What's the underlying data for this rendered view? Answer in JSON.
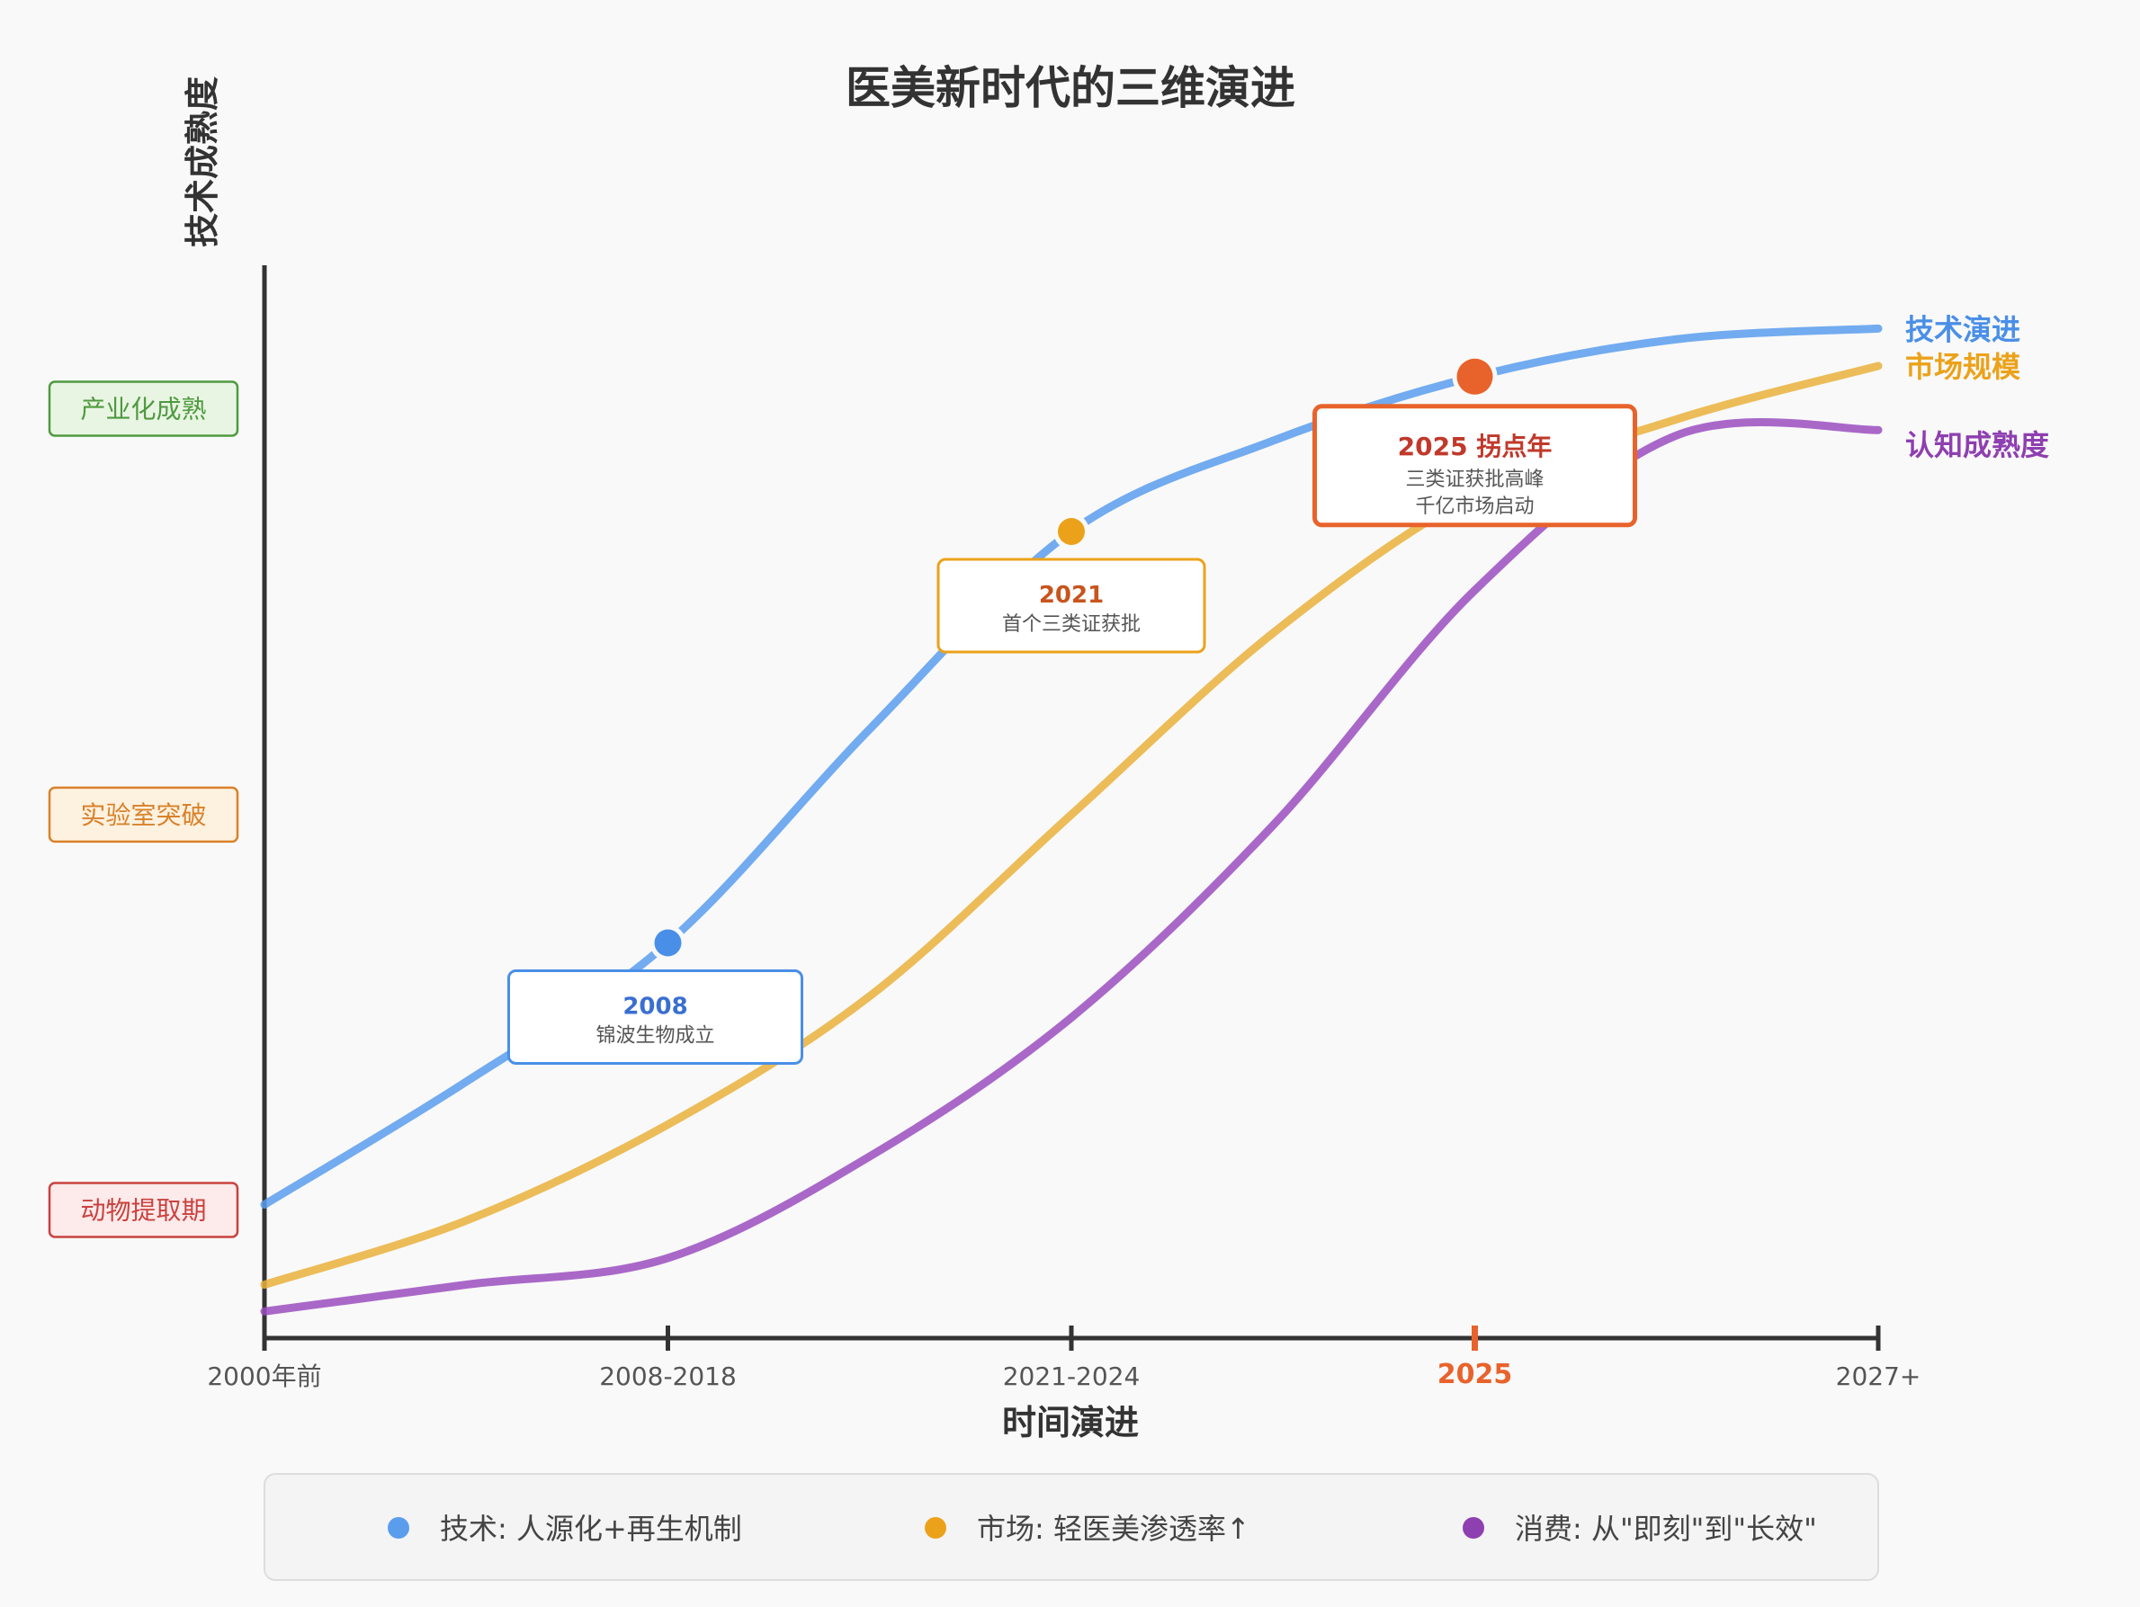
{
  "chart_data": {
    "type": "line",
    "title": "医美新时代的三维演进",
    "xlabel": "时间演进",
    "ylabel": "技术成熟度",
    "categories": [
      "2000年前",
      "2008-2018",
      "2021-2024",
      "2025",
      "2027+"
    ],
    "highlight_category": "2025",
    "ylim": [
      0,
      100
    ],
    "y_stages": [
      {
        "label": "动物提取期",
        "y": 12,
        "color": "#c9423f",
        "bg": "#fdeaea"
      },
      {
        "label": "实验室突破",
        "y": 49,
        "color": "#d9822b",
        "bg": "#fdf1df"
      },
      {
        "label": "产业化成熟",
        "y": 87,
        "color": "#4e9a3f",
        "bg": "#e9f5e3"
      }
    ],
    "series": [
      {
        "name": "技术演进",
        "color": "#5b9ded",
        "label_color": "#4a8fe7",
        "points": [
          [
            0,
            12.5
          ],
          [
            0.5,
            24
          ],
          [
            1,
            37
          ],
          [
            1.5,
            57
          ],
          [
            2,
            75.5
          ],
          [
            2.5,
            84
          ],
          [
            3,
            90
          ],
          [
            3.5,
            93.5
          ],
          [
            4,
            94.5
          ]
        ]
      },
      {
        "name": "市场规模",
        "color": "#eab13c",
        "label_color": "#eba21a",
        "points": [
          [
            0,
            5
          ],
          [
            0.5,
            11
          ],
          [
            1,
            20
          ],
          [
            1.5,
            32
          ],
          [
            2,
            49
          ],
          [
            2.5,
            66
          ],
          [
            3,
            79
          ],
          [
            3.5,
            86
          ],
          [
            4,
            91
          ]
        ]
      },
      {
        "name": "认知成熟度",
        "color": "#9b4fbf",
        "label_color": "#8e3fb0",
        "points": [
          [
            0,
            2.5
          ],
          [
            0.5,
            5
          ],
          [
            1,
            7.5
          ],
          [
            1.5,
            17
          ],
          [
            2,
            30
          ],
          [
            2.5,
            48
          ],
          [
            3,
            70
          ],
          [
            3.5,
            84.5
          ],
          [
            4,
            85
          ]
        ]
      }
    ],
    "annotations": [
      {
        "x": 1,
        "y": 37,
        "series": 0,
        "title": "2008",
        "text": [
          "锦波生物成立"
        ],
        "color": "#4a8fe7",
        "title_color": "#3a6fd0"
      },
      {
        "x": 2,
        "y": 75.5,
        "series": 1,
        "title": "2021",
        "text": [
          "首个三类证获批"
        ],
        "color": "#eba21a",
        "title_color": "#c8551d"
      },
      {
        "x": 3,
        "y": 90,
        "series": 2,
        "title": "2025 拐点年",
        "text": [
          "三类证获批高峰",
          "千亿市场启动"
        ],
        "color": "#e8632b",
        "title_color": "#c0392b"
      }
    ],
    "legend": [
      {
        "color": "#5b9ded",
        "text": "技术: 人源化+再生机制"
      },
      {
        "color": "#eba21a",
        "text": "市场: 轻医美渗透率↑"
      },
      {
        "color": "#8e3fb0",
        "text": "消费: 从\"即刻\"到\"长效\""
      }
    ],
    "grid": false,
    "legend_placement": "bottom"
  }
}
